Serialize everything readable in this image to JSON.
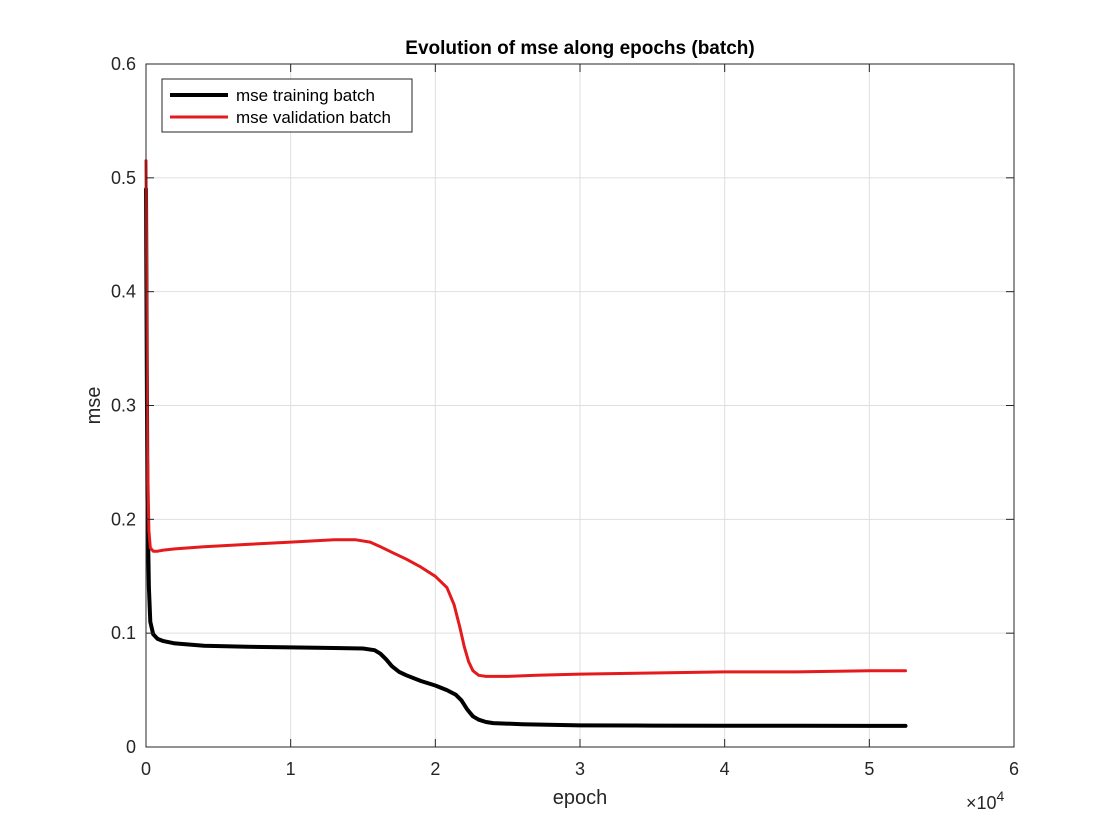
{
  "chart_data": {
    "type": "line",
    "title": "Evolution of mse along epochs (batch)",
    "xlabel": "epoch",
    "ylabel": "mse",
    "x_exponent_base": "×10",
    "x_exponent_power": "4",
    "xlim": [
      0,
      60000
    ],
    "ylim": [
      0,
      0.6
    ],
    "x_ticks": [
      0,
      10000,
      20000,
      30000,
      40000,
      50000,
      60000
    ],
    "x_tick_labels": [
      "0",
      "1",
      "2",
      "3",
      "4",
      "5",
      "6"
    ],
    "y_ticks": [
      0,
      0.1,
      0.2,
      0.3,
      0.4,
      0.5,
      0.6
    ],
    "y_tick_labels": [
      "0",
      "0.1",
      "0.2",
      "0.3",
      "0.4",
      "0.5",
      "0.6"
    ],
    "grid": true,
    "legend_position": "top-left",
    "series": [
      {
        "name": "mse training batch",
        "color": "#000000",
        "x": [
          0,
          50,
          100,
          200,
          300,
          500,
          800,
          1200,
          2000,
          4000,
          7000,
          10000,
          13000,
          15000,
          15800,
          16200,
          16600,
          17000,
          17500,
          18000,
          19000,
          20000,
          20800,
          21400,
          21800,
          22200,
          22600,
          23000,
          23500,
          24000,
          26000,
          30000,
          35000,
          40000,
          45000,
          50000,
          52500
        ],
        "y": [
          0.49,
          0.35,
          0.22,
          0.14,
          0.11,
          0.099,
          0.095,
          0.093,
          0.091,
          0.089,
          0.088,
          0.0875,
          0.087,
          0.0865,
          0.085,
          0.082,
          0.077,
          0.071,
          0.066,
          0.063,
          0.058,
          0.054,
          0.05,
          0.046,
          0.041,
          0.033,
          0.027,
          0.024,
          0.022,
          0.021,
          0.02,
          0.019,
          0.0188,
          0.0187,
          0.0186,
          0.0185,
          0.0185
        ]
      },
      {
        "name": "mse validation batch",
        "color": "#e41a1c",
        "x": [
          0,
          50,
          100,
          200,
          300,
          500,
          800,
          1200,
          2000,
          4000,
          7000,
          10000,
          13000,
          14500,
          15500,
          16200,
          17000,
          18000,
          19000,
          20000,
          20800,
          21300,
          21700,
          22000,
          22300,
          22600,
          23000,
          23500,
          24000,
          25000,
          27000,
          30000,
          35000,
          40000,
          45000,
          50000,
          52500
        ],
        "y": [
          0.515,
          0.4,
          0.26,
          0.19,
          0.175,
          0.172,
          0.172,
          0.173,
          0.174,
          0.176,
          0.178,
          0.18,
          0.182,
          0.182,
          0.18,
          0.176,
          0.171,
          0.165,
          0.158,
          0.15,
          0.14,
          0.125,
          0.105,
          0.088,
          0.075,
          0.067,
          0.063,
          0.062,
          0.062,
          0.062,
          0.063,
          0.064,
          0.065,
          0.066,
          0.066,
          0.067,
          0.067
        ]
      }
    ]
  }
}
